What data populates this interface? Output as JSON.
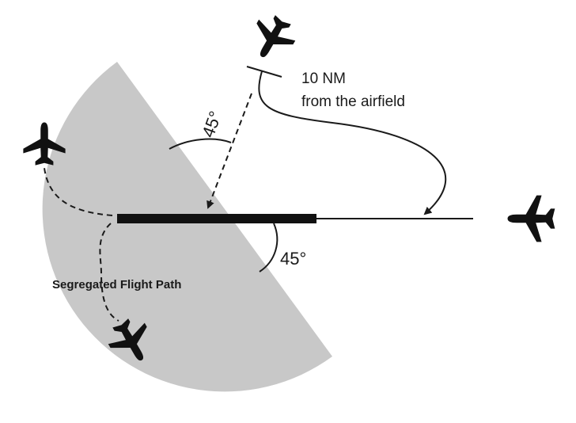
{
  "diagram": {
    "type": "aerodrome-approach-diagram",
    "colors": {
      "segregated_area": "#c8c8c8",
      "ink": "#1a1a1a",
      "background": "#ffffff"
    },
    "labels": {
      "distance_line1": "10 NM",
      "distance_line2": "from the airfield",
      "angle_top": "45°",
      "angle_bottom": "45°",
      "segregated_path": "Segregated Flight Path"
    },
    "icons": [
      "aircraft-approach-icon",
      "aircraft-final-icon",
      "aircraft-departing-icon",
      "aircraft-segregated-icon"
    ]
  }
}
